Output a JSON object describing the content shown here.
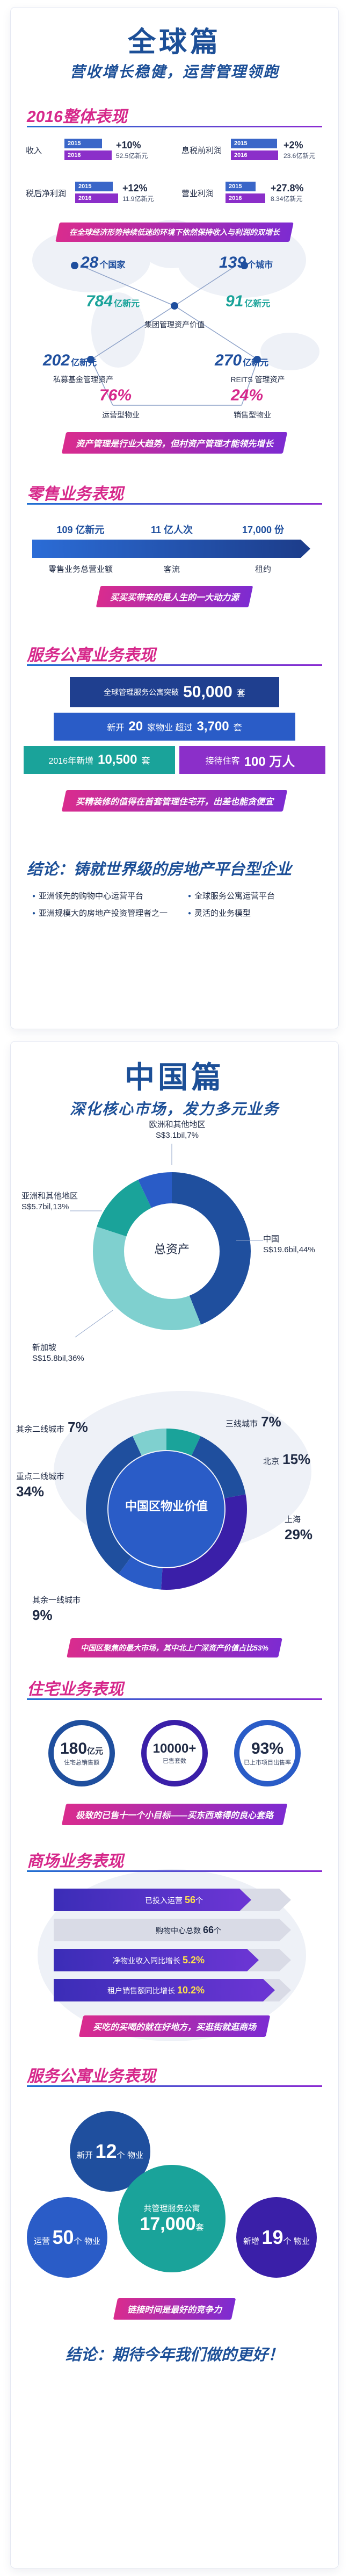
{
  "global": {
    "title": "全球篇",
    "subtitle": "营收增长稳健，运营管理领跑",
    "overall": {
      "title": "2016整体表现",
      "metrics": [
        {
          "label": "收入",
          "y2015": "2015",
          "y2016": "2016",
          "change": "+10%",
          "value": "52.5亿新元"
        },
        {
          "label": "息税前利润",
          "y2015": "2015",
          "y2016": "2016",
          "change": "+2%",
          "value": "23.6亿新元"
        },
        {
          "label": "税后净利润",
          "y2015": "2015",
          "y2016": "2016",
          "change": "+12%",
          "value": "11.9亿新元"
        },
        {
          "label": "营业利润",
          "y2015": "2015",
          "y2016": "2016",
          "change": "+27.8%",
          "value": "8.34亿新元"
        }
      ],
      "banner1": "在全球经济形势持续低迷的环境下依然保持收入与利润的双增长",
      "network": {
        "n1": {
          "num": "28",
          "unit": "个国家"
        },
        "n2": {
          "num": "139",
          "unit": "个城市"
        },
        "n3": {
          "num": "784",
          "unit": "亿新元",
          "label": "集团管理资产价值"
        },
        "n4": {
          "num": "91",
          "unit": "亿新元"
        },
        "n5": {
          "num": "202",
          "unit": "亿新元",
          "label": "私募基金管理资产"
        },
        "n6": {
          "num": "270",
          "unit": "亿新元",
          "label": "REITS 管理资产"
        },
        "n7": {
          "num": "76%",
          "unit": "",
          "label": "运营型物业"
        },
        "n8": {
          "num": "24%",
          "unit": "",
          "label": "销售型物业"
        }
      },
      "banner2": "资产管理是行业大趋势，但村资产管理才能领先增长"
    },
    "retail": {
      "title": "零售业务表现",
      "values": [
        {
          "val": "109",
          "unit": "亿新元",
          "label": "零售业务总营业额"
        },
        {
          "val": "11",
          "unit": "亿人次",
          "label": "客流"
        },
        {
          "val": "17,000",
          "unit": "份",
          "label": "租约"
        }
      ],
      "banner": "买买买带来的是人生的一大动力源"
    },
    "apartments": {
      "title": "服务公寓业务表现",
      "row1_label": "全球管理服务公寓突破",
      "row1_value": "50,000",
      "row1_unit": "套",
      "row2_prefix": "新开",
      "row2_v1": "20",
      "row2_mid": "家物业  超过",
      "row2_v2": "3,700",
      "row2_unit": "套",
      "row3a_label": "2016年新增",
      "row3a_value": "10,500",
      "row3a_unit": "套",
      "row3b_label": "接待住客",
      "row3b_value": "100 万人",
      "banner": "买精装修的值得在首套管理住宅开，出差也能贪便宜"
    },
    "conclusion": {
      "title": "结论：铸就世界级的房地产平台型企业",
      "items": [
        "亚洲领先的购物中心运营平台",
        "亚洲规模大的房地产投资管理者之一",
        "全球服务公寓运营平台",
        "灵活的业务模型"
      ]
    }
  },
  "china": {
    "title": "中国篇",
    "subtitle": "深化核心市场，发力多元业务",
    "assets_chart": {
      "center_label": "总资产",
      "labels": [
        {
          "name": "欧洲和其他地区",
          "value": "S$3.1bil,7%"
        },
        {
          "name": "亚洲和其他地区",
          "value": "S$5.7bil,13%"
        },
        {
          "name": "中国",
          "value": "S$19.6bil,44%"
        },
        {
          "name": "新加坡",
          "value": "S$15.8bil,36%"
        }
      ]
    },
    "property_chart": {
      "center_label": "中国区物业价值",
      "labels": [
        {
          "name": "其余二线城市",
          "value": "7%"
        },
        {
          "name": "三线城市",
          "value": "7%"
        },
        {
          "name": "北京",
          "value": "15%"
        },
        {
          "name": "重点二线城市",
          "value": "34%"
        },
        {
          "name": "上海",
          "value": "29%"
        },
        {
          "name": "其余一线城市",
          "value": "9%"
        }
      ],
      "banner": "中国区聚焦的最大市场，其中北上广深资产价值占比53%"
    },
    "residential": {
      "title": "住宅业务表现",
      "circles": [
        {
          "value": "180",
          "unit": "亿元",
          "label": "住宅总销售额"
        },
        {
          "value": "10000+",
          "unit": "",
          "label": "已售套数"
        },
        {
          "value": "93%",
          "unit": "",
          "label": "已上市项目出售率"
        }
      ],
      "banner": "极致的已售十一个小目标——买东西难得的良心套路"
    },
    "mall": {
      "title": "商场业务表现",
      "bars": [
        {
          "label": "已投入运营",
          "value": "56",
          "unit": "个"
        },
        {
          "label": "购物中心总数",
          "value": "66",
          "unit": "个"
        },
        {
          "label": "净物业收入同比增长",
          "value": "5.2%",
          "unit": ""
        },
        {
          "label": "租户销售额同比增长",
          "value": "10.2%",
          "unit": ""
        }
      ],
      "banner": "买吃的买喝的就在好地方，买逛街就逛商场"
    },
    "apartments": {
      "title": "服务公寓业务表现",
      "b1": {
        "prefix": "新开",
        "value": "12",
        "unit": "个",
        "suffix": "物业"
      },
      "b2": {
        "prefix": "运营",
        "value": "50",
        "unit": "个",
        "suffix": "物业"
      },
      "b3": {
        "label": "共管理服务公寓",
        "value": "17,000",
        "unit": "套"
      },
      "b4": {
        "prefix": "新增",
        "value": "19",
        "unit": "个",
        "suffix": "物业"
      },
      "banner": "链接时间是最好的竞争力"
    },
    "conclusion": "结论：期待今年我们做的更好！"
  }
}
